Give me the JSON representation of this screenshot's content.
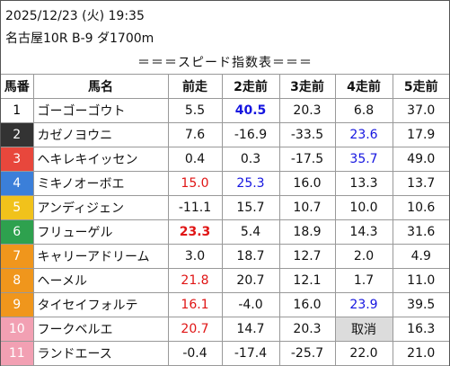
{
  "header": {
    "datetime": "2025/12/23 (火) 19:35",
    "race": "名古屋10R B-9 ダ1700m"
  },
  "title": "＝＝＝スピード指数表＝＝＝",
  "table": {
    "columns": [
      "馬番",
      "馬名",
      "前走",
      "2走前",
      "3走前",
      "4走前",
      "5走前"
    ],
    "rows": [
      {
        "number": "1",
        "badge_color": "#ffffff",
        "badge_text_color": "#000000",
        "name": "ゴーゴーゴウト",
        "speeds": [
          "5.5",
          "40.5",
          "20.3",
          "6.8",
          "37.0"
        ],
        "styles": [
          {
            "index": 1,
            "color": "#1515e0",
            "bold": true
          }
        ]
      },
      {
        "number": "2",
        "badge_color": "#333333",
        "badge_text_color": "#ffffff",
        "name": "カゼノヨウニ",
        "speeds": [
          "7.6",
          "-16.9",
          "-33.5",
          "23.6",
          "17.9"
        ],
        "styles": [
          {
            "index": 3,
            "color": "#1515e0",
            "bold": false
          }
        ]
      },
      {
        "number": "3",
        "badge_color": "#e8473c",
        "badge_text_color": "#ffffff",
        "name": "ヘキレキイッセン",
        "speeds": [
          "0.4",
          "0.3",
          "-17.5",
          "35.7",
          "49.0"
        ],
        "styles": [
          {
            "index": 3,
            "color": "#1515e0",
            "bold": false
          }
        ]
      },
      {
        "number": "4",
        "badge_color": "#3b7fd9",
        "badge_text_color": "#ffffff",
        "name": "ミキノオーボエ",
        "speeds": [
          "15.0",
          "25.3",
          "16.0",
          "13.3",
          "13.7"
        ],
        "styles": [
          {
            "index": 0,
            "color": "#e01515",
            "bold": false
          },
          {
            "index": 1,
            "color": "#1515e0",
            "bold": false
          }
        ]
      },
      {
        "number": "5",
        "badge_color": "#f1c21b",
        "badge_text_color": "#ffffff",
        "name": "アンディジェン",
        "speeds": [
          "-11.1",
          "15.7",
          "10.7",
          "10.0",
          "10.6"
        ],
        "styles": []
      },
      {
        "number": "6",
        "badge_color": "#2ea14e",
        "badge_text_color": "#ffffff",
        "name": "フリューゲル",
        "speeds": [
          "23.3",
          "5.4",
          "18.9",
          "14.3",
          "31.6"
        ],
        "styles": [
          {
            "index": 0,
            "color": "#e01515",
            "bold": true
          }
        ]
      },
      {
        "number": "7",
        "badge_color": "#f0961c",
        "badge_text_color": "#ffffff",
        "name": "キャリーアドリーム",
        "speeds": [
          "3.0",
          "18.7",
          "12.7",
          "2.0",
          "4.9"
        ],
        "styles": []
      },
      {
        "number": "8",
        "badge_color": "#f0961c",
        "badge_text_color": "#ffffff",
        "name": "ヘーメル",
        "speeds": [
          "21.8",
          "20.7",
          "12.1",
          "1.7",
          "11.0"
        ],
        "styles": [
          {
            "index": 0,
            "color": "#e01515",
            "bold": false
          }
        ]
      },
      {
        "number": "9",
        "badge_color": "#f0961c",
        "badge_text_color": "#ffffff",
        "name": "タイセイフォルテ",
        "speeds": [
          "16.1",
          "-4.0",
          "16.0",
          "23.9",
          "39.5"
        ],
        "styles": [
          {
            "index": 0,
            "color": "#e01515",
            "bold": false
          },
          {
            "index": 3,
            "color": "#1515e0",
            "bold": false
          }
        ]
      },
      {
        "number": "10",
        "badge_color": "#f2a0b3",
        "badge_text_color": "#ffffff",
        "name": "フークベルエ",
        "speeds": [
          "20.7",
          "14.7",
          "20.3",
          "取消",
          "16.3"
        ],
        "styles": [
          {
            "index": 0,
            "color": "#e01515",
            "bold": false
          },
          {
            "index": 3,
            "background": "#dcdcdc"
          }
        ]
      },
      {
        "number": "11",
        "badge_color": "#f2a0b3",
        "badge_text_color": "#ffffff",
        "name": "ランドエース",
        "speeds": [
          "-0.4",
          "-17.4",
          "-25.7",
          "22.0",
          "21.0"
        ],
        "styles": []
      }
    ]
  }
}
